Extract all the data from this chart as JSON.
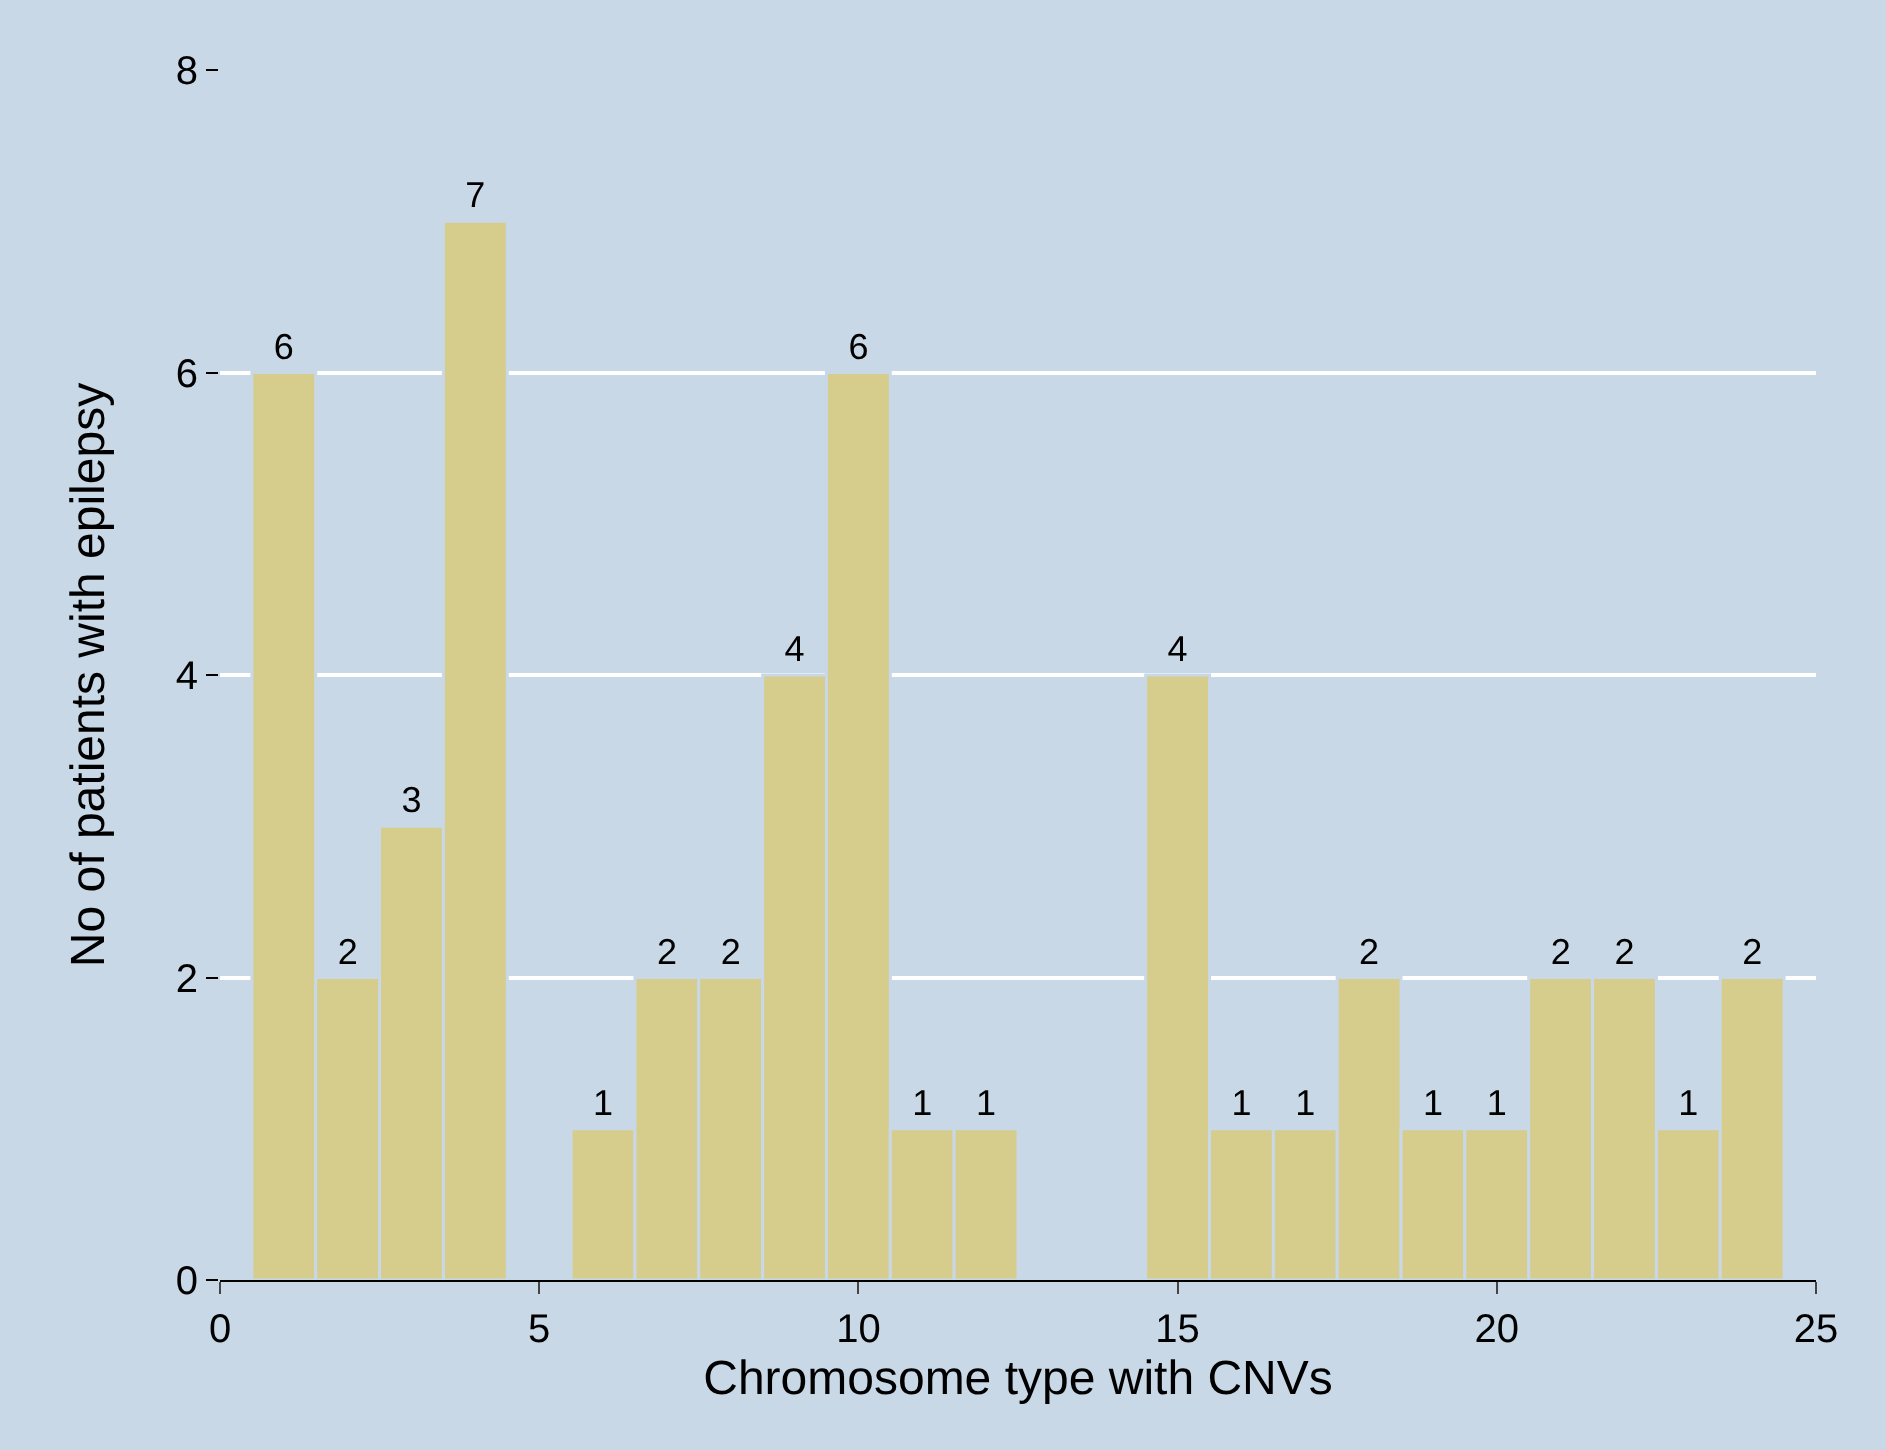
{
  "chart_data": {
    "type": "bar",
    "xlabel": "Chromosome type with CNVs",
    "ylabel": "No of patients with epilepsy",
    "x": [
      1,
      2,
      3,
      4,
      6,
      7,
      8,
      9,
      10,
      11,
      12,
      15,
      16,
      17,
      18,
      19,
      20,
      21,
      22,
      23,
      24
    ],
    "values": [
      6,
      2,
      3,
      7,
      1,
      2,
      2,
      4,
      6,
      1,
      1,
      4,
      1,
      1,
      2,
      1,
      1,
      2,
      2,
      1,
      2
    ],
    "color": "#d6cc8c",
    "data_labels": true,
    "xlim": [
      0,
      25
    ],
    "xticks": [
      0,
      5,
      10,
      15,
      20,
      25
    ],
    "ylim": [
      0,
      8
    ],
    "yticks": [
      0,
      2,
      4,
      6,
      8
    ],
    "grid": "y"
  }
}
